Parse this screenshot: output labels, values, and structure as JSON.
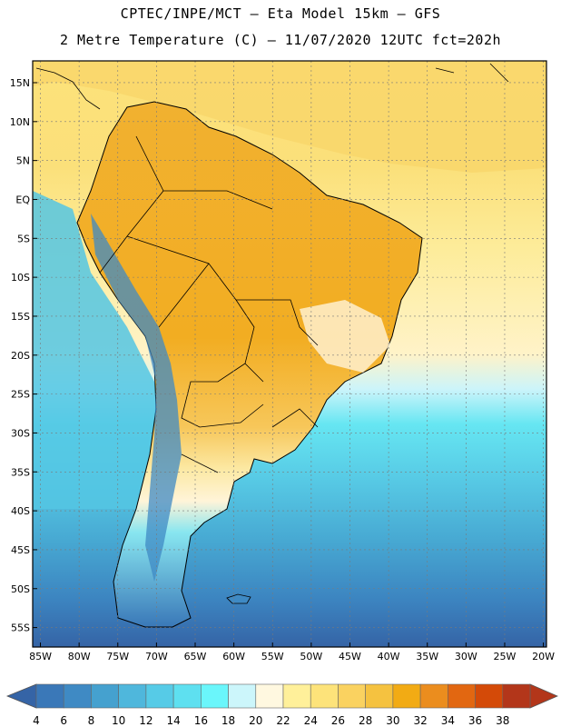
{
  "header": {
    "line1": "CPTEC/INPE/MCT –  Eta Model 15km – GFS",
    "line2": "2 Metre Temperature (C) – 11/07/2020 12UTC fct=202h"
  },
  "map": {
    "lat_labels": [
      "15N",
      "10N",
      "5N",
      "EQ",
      "5S",
      "10S",
      "15S",
      "20S",
      "25S",
      "30S",
      "35S",
      "40S",
      "45S",
      "50S",
      "55S"
    ],
    "lon_labels": [
      "85W",
      "80W",
      "75W",
      "70W",
      "65W",
      "60W",
      "55W",
      "50W",
      "45W",
      "40W",
      "35W",
      "30W",
      "25W",
      "20W"
    ],
    "lat_range": [
      15,
      -55
    ],
    "lon_range": [
      -85,
      -20
    ],
    "gridlines": true
  },
  "colorbar": {
    "labels": [
      "4",
      "6",
      "8",
      "10",
      "12",
      "14",
      "16",
      "18",
      "20",
      "22",
      "24",
      "26",
      "28",
      "30",
      "32",
      "34",
      "36",
      "38"
    ],
    "colors": [
      "#3a78b8",
      "#3f8ac4",
      "#45a1cf",
      "#4fb7dc",
      "#56cbe7",
      "#5ee0f0",
      "#6af6fb",
      "#ccf6fb",
      "#fff8e0",
      "#fff09a",
      "#fde37a",
      "#fad260",
      "#f5c240",
      "#f2ab14",
      "#eb8d1e",
      "#e26711",
      "#d44a08",
      "#b3361a"
    ],
    "low_arrow_color": "#3564a6",
    "high_arrow_color": "#b3361a"
  }
}
